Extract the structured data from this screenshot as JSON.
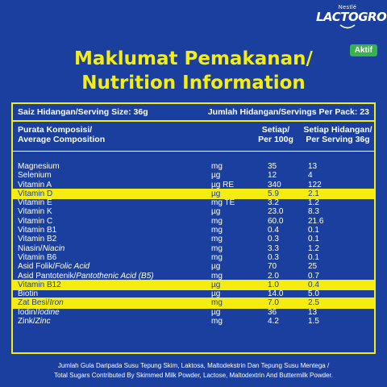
{
  "brand": {
    "maker": "Nestlé",
    "name": "LACTOGROW",
    "badge": "Aktif"
  },
  "title": {
    "line1": "Maklumat Pemakanan/",
    "line2": "Nutrition Information"
  },
  "serving": {
    "size": "Saiz Hidangan/Serving Size: 36g",
    "per_pack": "Jumlah Hidangan/Servings Per Pack: 23"
  },
  "header": {
    "composition_line1": "Purata Komposisi/",
    "composition_line2": "Average Composition",
    "per100_line1": "Setiap/",
    "per100_line2": "Per 100g",
    "perserving_line1": "Setiap Hidangan/",
    "perserving_line2": "Per Serving 36g"
  },
  "rows": [
    {
      "name": "Magnesium",
      "name_en": "",
      "unit": "mg",
      "per100": "35",
      "perserving": "13",
      "highlight": false
    },
    {
      "name": "Selenium",
      "name_en": "",
      "unit": "µg",
      "per100": "12",
      "perserving": "4",
      "highlight": false
    },
    {
      "name": "Vitamin A",
      "name_en": "",
      "unit": "µg RE",
      "per100": "340",
      "perserving": "122",
      "highlight": false
    },
    {
      "name": "Vitamin D",
      "name_en": "",
      "unit": "µg",
      "per100": "5.9",
      "perserving": "2.1",
      "highlight": true
    },
    {
      "name": "Vitamin E",
      "name_en": "",
      "unit": "mg TE",
      "per100": "3.2",
      "perserving": "1.2",
      "highlight": false
    },
    {
      "name": "Vitamin K",
      "name_en": "",
      "unit": "µg",
      "per100": "23.0",
      "perserving": "8.3",
      "highlight": false
    },
    {
      "name": "Vitamin C",
      "name_en": "",
      "unit": "mg",
      "per100": "60.0",
      "perserving": "21.6",
      "highlight": false
    },
    {
      "name": "Vitamin B1",
      "name_en": "",
      "unit": "mg",
      "per100": "0.4",
      "perserving": "0.1",
      "highlight": false
    },
    {
      "name": "Vitamin B2",
      "name_en": "",
      "unit": "mg",
      "per100": "0.3",
      "perserving": "0.1",
      "highlight": false
    },
    {
      "name": "Niasin/",
      "name_en": "Niacin",
      "unit": "mg",
      "per100": "3.3",
      "perserving": "1.2",
      "highlight": false
    },
    {
      "name": "Vitamin B6",
      "name_en": "",
      "unit": "mg",
      "per100": "0.3",
      "perserving": "0.1",
      "highlight": false
    },
    {
      "name": "Asid Folik/",
      "name_en": "Folic Acid",
      "unit": "µg",
      "per100": "70",
      "perserving": "25",
      "highlight": false
    },
    {
      "name": "Asid Pantotenik/",
      "name_en": "Pantothenic Acid (B5)",
      "unit": "mg",
      "per100": "2.0",
      "perserving": "0.7",
      "highlight": false
    },
    {
      "name": "Vitamin B12",
      "name_en": "",
      "unit": "µg",
      "per100": "1.0",
      "perserving": "0.4",
      "highlight": true
    },
    {
      "name": "Biotin",
      "name_en": "",
      "unit": "µg",
      "per100": "14.0",
      "perserving": "5.0",
      "highlight": false
    },
    {
      "name": "Zat Besi/",
      "name_en": "Iron",
      "unit": "mg",
      "per100": "7.0",
      "perserving": "2.5",
      "highlight": true
    },
    {
      "name": "Iodin/",
      "name_en": "Iodine",
      "unit": "µg",
      "per100": "36",
      "perserving": "13",
      "highlight": false
    },
    {
      "name": "Zink/",
      "name_en": "Zinc",
      "unit": "mg",
      "per100": "4.2",
      "perserving": "1.5",
      "highlight": false
    }
  ],
  "footnote": {
    "line1": "Jumlah Gula Daripada Susu Tepung Skim, Laktosa, Maltodekstrin Dan Tepung Susu Mentega /",
    "line2": "Total Sugars Contributed By Skimmed Milk Powder, Lactose, Maltodextrin And Buttermilk Powder."
  },
  "colors": {
    "background": "#1a3f9e",
    "accent": "#f5ed12",
    "badge": "#38b24a"
  }
}
